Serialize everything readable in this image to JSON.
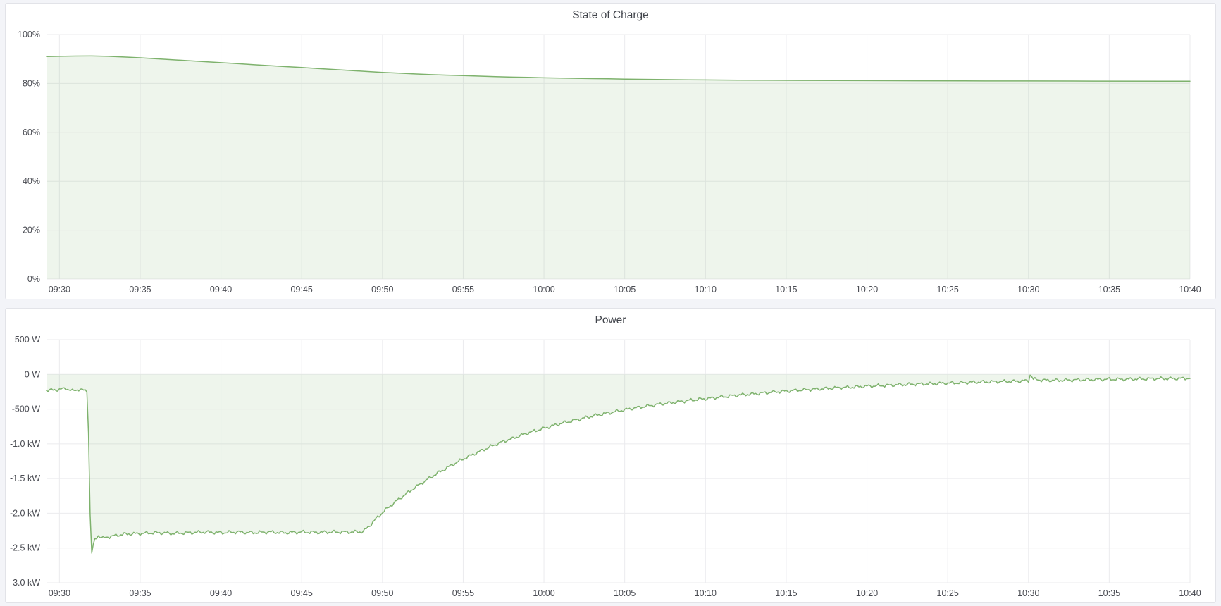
{
  "page": {
    "background_color": "#f3f4f8",
    "panel_background": "#ffffff",
    "panel_border_color": "#e2e3e8"
  },
  "chart_data": [
    {
      "type": "area",
      "title": "State of Charge",
      "xlabel": "",
      "ylabel": "",
      "unit": "%",
      "legend": "none",
      "grid": true,
      "grid_color": "#ebebee",
      "line_color": "#7eb26d",
      "fill_color": "rgba(126,178,109,0.13)",
      "baseline": 0,
      "xlim": [
        -0.8,
        70
      ],
      "ylim": [
        0,
        100
      ],
      "x_ticks": [
        {
          "t": 0,
          "label": "09:30"
        },
        {
          "t": 5,
          "label": "09:35"
        },
        {
          "t": 10,
          "label": "09:40"
        },
        {
          "t": 15,
          "label": "09:45"
        },
        {
          "t": 20,
          "label": "09:50"
        },
        {
          "t": 25,
          "label": "09:55"
        },
        {
          "t": 30,
          "label": "10:00"
        },
        {
          "t": 35,
          "label": "10:05"
        },
        {
          "t": 40,
          "label": "10:10"
        },
        {
          "t": 45,
          "label": "10:15"
        },
        {
          "t": 50,
          "label": "10:20"
        },
        {
          "t": 55,
          "label": "10:25"
        },
        {
          "t": 60,
          "label": "10:30"
        },
        {
          "t": 65,
          "label": "10:35"
        },
        {
          "t": 70,
          "label": "10:40"
        }
      ],
      "y_ticks": [
        {
          "v": 100,
          "label": "100%"
        },
        {
          "v": 80,
          "label": "80%"
        },
        {
          "v": 60,
          "label": "60%"
        },
        {
          "v": 40,
          "label": "40%"
        },
        {
          "v": 20,
          "label": "20%"
        },
        {
          "v": 0,
          "label": "0%"
        }
      ],
      "noise": {
        "amplitude": 0,
        "step_min": 0
      },
      "series": [
        {
          "name": "State of Charge",
          "points": [
            [
              -0.8,
              91.0
            ],
            [
              0,
              91.1
            ],
            [
              1,
              91.2
            ],
            [
              2,
              91.25
            ],
            [
              3,
              91.1
            ],
            [
              4,
              90.8
            ],
            [
              5,
              90.5
            ],
            [
              6,
              90.1
            ],
            [
              7,
              89.7
            ],
            [
              8,
              89.3
            ],
            [
              9,
              88.9
            ],
            [
              10,
              88.5
            ],
            [
              11,
              88.1
            ],
            [
              12,
              87.7
            ],
            [
              13,
              87.3
            ],
            [
              14,
              86.9
            ],
            [
              15,
              86.5
            ],
            [
              16,
              86.1
            ],
            [
              17,
              85.7
            ],
            [
              18,
              85.3
            ],
            [
              19,
              84.9
            ],
            [
              20,
              84.5
            ],
            [
              21,
              84.2
            ],
            [
              22,
              83.9
            ],
            [
              23,
              83.6
            ],
            [
              24,
              83.4
            ],
            [
              25,
              83.2
            ],
            [
              26,
              83.0
            ],
            [
              27,
              82.8
            ],
            [
              28,
              82.6
            ],
            [
              29,
              82.5
            ],
            [
              30,
              82.3
            ],
            [
              31,
              82.2
            ],
            [
              32,
              82.1
            ],
            [
              33,
              82.0
            ],
            [
              34,
              81.9
            ],
            [
              35,
              81.8
            ],
            [
              36,
              81.7
            ],
            [
              37,
              81.6
            ],
            [
              38,
              81.55
            ],
            [
              39,
              81.5
            ],
            [
              40,
              81.45
            ],
            [
              42,
              81.35
            ],
            [
              44,
              81.3
            ],
            [
              46,
              81.25
            ],
            [
              48,
              81.2
            ],
            [
              50,
              81.15
            ],
            [
              53,
              81.1
            ],
            [
              56,
              81.05
            ],
            [
              60,
              81.0
            ],
            [
              64,
              80.95
            ],
            [
              70,
              80.9
            ]
          ]
        }
      ]
    },
    {
      "type": "area",
      "title": "Power",
      "xlabel": "",
      "ylabel": "",
      "unit": "W",
      "legend": "none",
      "grid": true,
      "grid_color": "#ebebee",
      "line_color": "#7eb26d",
      "fill_color": "rgba(126,178,109,0.13)",
      "baseline": 0,
      "xlim": [
        -0.8,
        70
      ],
      "ylim": [
        -3000,
        500
      ],
      "x_ticks": [
        {
          "t": 0,
          "label": "09:30"
        },
        {
          "t": 5,
          "label": "09:35"
        },
        {
          "t": 10,
          "label": "09:40"
        },
        {
          "t": 15,
          "label": "09:45"
        },
        {
          "t": 20,
          "label": "09:50"
        },
        {
          "t": 25,
          "label": "09:55"
        },
        {
          "t": 30,
          "label": "10:00"
        },
        {
          "t": 35,
          "label": "10:05"
        },
        {
          "t": 40,
          "label": "10:10"
        },
        {
          "t": 45,
          "label": "10:15"
        },
        {
          "t": 50,
          "label": "10:20"
        },
        {
          "t": 55,
          "label": "10:25"
        },
        {
          "t": 60,
          "label": "10:30"
        },
        {
          "t": 65,
          "label": "10:35"
        },
        {
          "t": 70,
          "label": "10:40"
        }
      ],
      "y_ticks": [
        {
          "v": 500,
          "label": "500 W"
        },
        {
          "v": 0,
          "label": "0 W"
        },
        {
          "v": -500,
          "label": "-500 W"
        },
        {
          "v": -1000,
          "label": "-1.0 kW"
        },
        {
          "v": -1500,
          "label": "-1.5 kW"
        },
        {
          "v": -2000,
          "label": "-2.0 kW"
        },
        {
          "v": -2500,
          "label": "-2.5 kW"
        },
        {
          "v": -3000,
          "label": "-3.0 kW"
        }
      ],
      "noise": {
        "amplitude": 28,
        "step_min": 0.1
      },
      "series": [
        {
          "name": "Power",
          "points": [
            [
              -0.8,
              -230
            ],
            [
              0,
              -220
            ],
            [
              0.4,
              -200
            ],
            [
              0.8,
              -240
            ],
            [
              1.2,
              -215
            ],
            [
              1.6,
              -235
            ],
            [
              1.75,
              -240
            ],
            [
              1.85,
              -1400
            ],
            [
              1.95,
              -2640
            ],
            [
              2.05,
              -2500
            ],
            [
              2.2,
              -2380
            ],
            [
              2.4,
              -2320
            ],
            [
              2.7,
              -2360
            ],
            [
              3,
              -2340
            ],
            [
              3.5,
              -2320
            ],
            [
              4,
              -2300
            ],
            [
              5,
              -2290
            ],
            [
              6,
              -2280
            ],
            [
              7,
              -2290
            ],
            [
              8,
              -2280
            ],
            [
              9,
              -2270
            ],
            [
              10,
              -2280
            ],
            [
              11,
              -2270
            ],
            [
              12,
              -2280
            ],
            [
              13,
              -2270
            ],
            [
              14,
              -2280
            ],
            [
              15,
              -2270
            ],
            [
              16,
              -2275
            ],
            [
              17,
              -2270
            ],
            [
              18,
              -2270
            ],
            [
              18.8,
              -2265
            ],
            [
              19.2,
              -2180
            ],
            [
              19.6,
              -2080
            ],
            [
              20,
              -1990
            ],
            [
              20.5,
              -1890
            ],
            [
              21,
              -1800
            ],
            [
              21.5,
              -1715
            ],
            [
              22,
              -1630
            ],
            [
              22.5,
              -1555
            ],
            [
              23,
              -1480
            ],
            [
              23.5,
              -1410
            ],
            [
              24,
              -1345
            ],
            [
              24.5,
              -1280
            ],
            [
              25,
              -1220
            ],
            [
              25.5,
              -1165
            ],
            [
              26,
              -1110
            ],
            [
              26.5,
              -1060
            ],
            [
              27,
              -1010
            ],
            [
              27.5,
              -965
            ],
            [
              28,
              -925
            ],
            [
              28.5,
              -885
            ],
            [
              29,
              -845
            ],
            [
              29.5,
              -810
            ],
            [
              30,
              -775
            ],
            [
              31,
              -710
            ],
            [
              32,
              -655
            ],
            [
              33,
              -600
            ],
            [
              34,
              -555
            ],
            [
              35,
              -510
            ],
            [
              36,
              -470
            ],
            [
              37,
              -435
            ],
            [
              38,
              -405
            ],
            [
              39,
              -375
            ],
            [
              40,
              -350
            ],
            [
              41,
              -325
            ],
            [
              42,
              -300
            ],
            [
              43,
              -280
            ],
            [
              44,
              -260
            ],
            [
              45,
              -240
            ],
            [
              46,
              -225
            ],
            [
              47,
              -210
            ],
            [
              48,
              -195
            ],
            [
              49,
              -185
            ],
            [
              50,
              -170
            ],
            [
              51,
              -160
            ],
            [
              52,
              -150
            ],
            [
              53,
              -140
            ],
            [
              54,
              -135
            ],
            [
              55,
              -125
            ],
            [
              56,
              -120
            ],
            [
              57,
              -110
            ],
            [
              58,
              -105
            ],
            [
              59,
              -100
            ],
            [
              60,
              -90
            ],
            [
              60.05,
              -30
            ],
            [
              60.15,
              20
            ],
            [
              60.25,
              -70
            ],
            [
              61,
              -85
            ],
            [
              62,
              -85
            ],
            [
              63,
              -80
            ],
            [
              64,
              -75
            ],
            [
              65,
              -70
            ],
            [
              66,
              -70
            ],
            [
              67,
              -65
            ],
            [
              68,
              -60
            ],
            [
              69,
              -60
            ],
            [
              70,
              -55
            ]
          ]
        }
      ]
    }
  ]
}
